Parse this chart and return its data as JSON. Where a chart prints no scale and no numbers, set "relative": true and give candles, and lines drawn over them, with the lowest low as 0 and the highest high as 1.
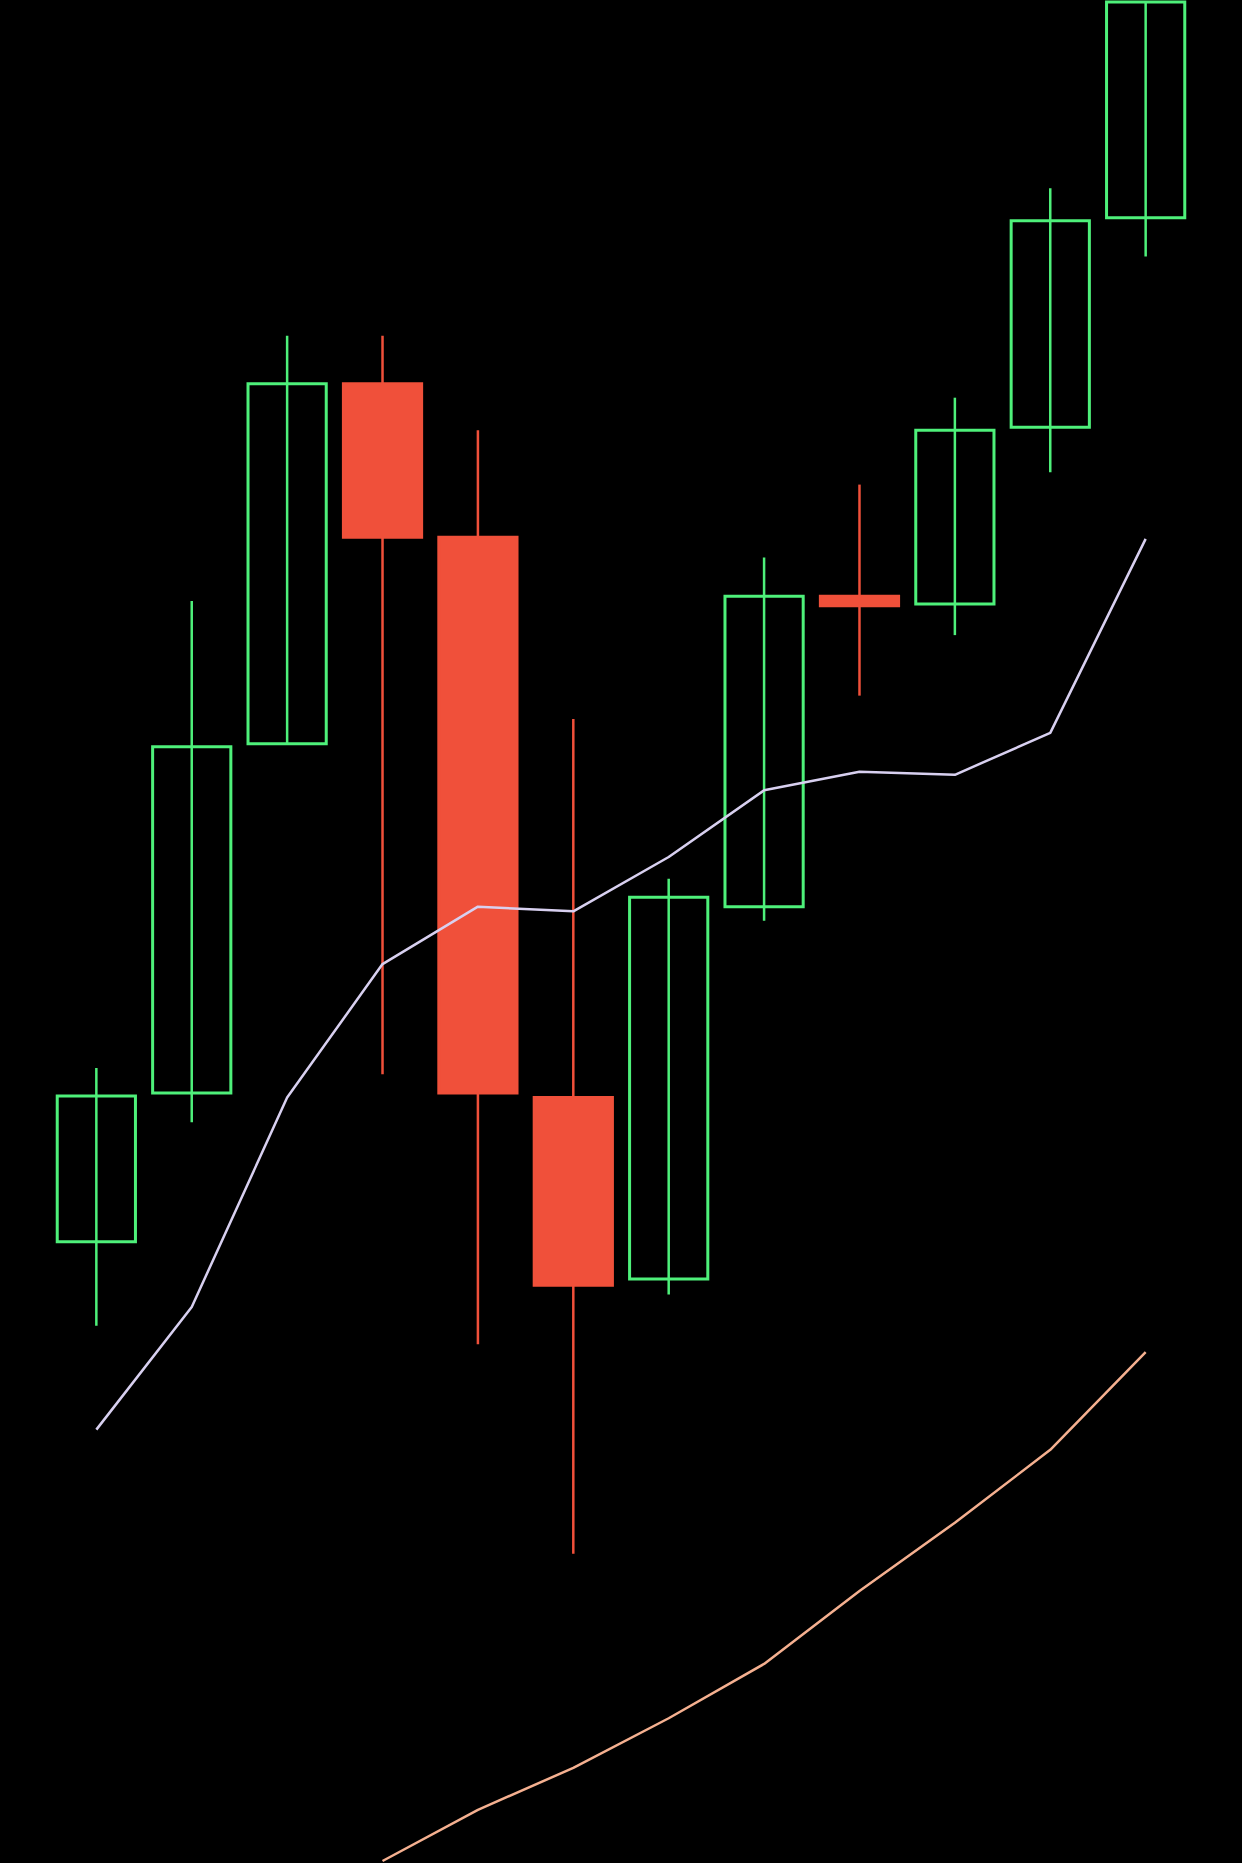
{
  "chart_data": {
    "type": "candlestick",
    "relative": true,
    "categories": [
      null,
      null,
      null,
      null,
      null,
      null,
      null,
      null,
      null,
      null,
      null,
      null
    ],
    "ohlc": [
      [
        0.201,
        0.313,
        0.147,
        0.295
      ],
      [
        0.297,
        0.614,
        0.278,
        0.52
      ],
      [
        0.522,
        0.785,
        0.522,
        0.754
      ],
      [
        0.754,
        0.785,
        0.309,
        0.655
      ],
      [
        0.655,
        0.724,
        0.135,
        0.297
      ],
      [
        0.294,
        0.538,
        0.0,
        0.173
      ],
      [
        0.177,
        0.435,
        0.167,
        0.423
      ],
      [
        0.417,
        0.642,
        0.408,
        0.617
      ],
      [
        0.617,
        0.689,
        0.553,
        0.611
      ],
      [
        0.612,
        0.745,
        0.592,
        0.724
      ],
      [
        0.726,
        0.88,
        0.697,
        0.859
      ],
      [
        0.861,
        1.0,
        0.836,
        1.0
      ]
    ],
    "colors": [
      "#4ef07a",
      "#4ef07a",
      "#4ef07a",
      "#f0503a",
      "#f0503a",
      "#f0503a",
      "#4ef07a",
      "#4ef07a",
      "#f0503a",
      "#4ef07a",
      "#4ef07a",
      "#4ef07a"
    ],
    "series": [
      {
        "type": "line",
        "color": "#d8d0f0",
        "values": [
          0.08,
          0.159,
          0.294,
          0.38,
          0.417,
          0.414,
          0.449,
          0.492,
          0.504,
          0.502,
          0.529,
          0.654
        ]
      },
      {
        "type": "line",
        "color": "#f5b090",
        "values": [
          null,
          null,
          null,
          -0.198,
          -0.165,
          -0.138,
          -0.106,
          -0.071,
          -0.024,
          0.02,
          0.067,
          0.13
        ]
      }
    ]
  }
}
